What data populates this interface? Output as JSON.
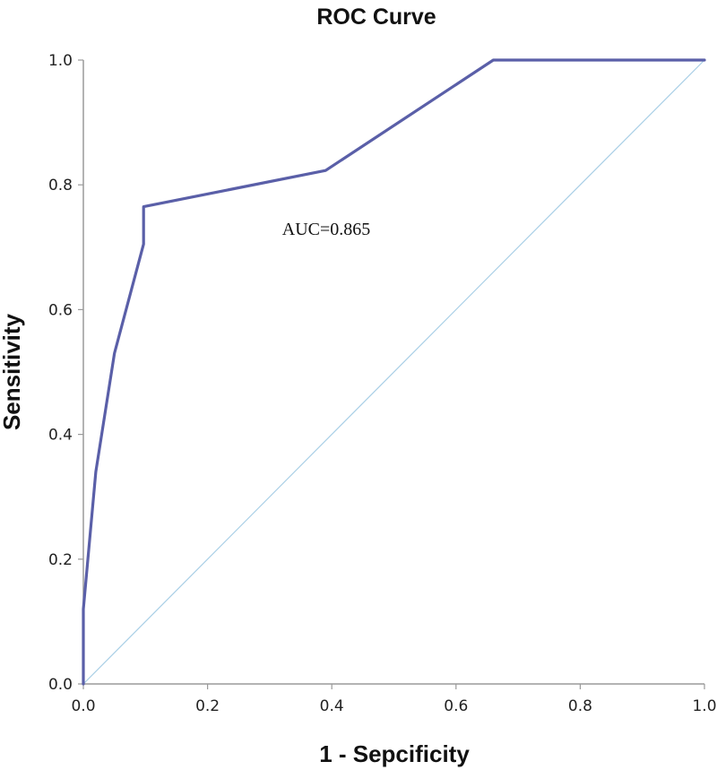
{
  "chart_data": {
    "type": "line",
    "title": "ROC Curve",
    "xlabel": "1 - Sepcificity",
    "ylabel": "Sensitivity",
    "xlim": [
      0,
      1
    ],
    "ylim": [
      0,
      1
    ],
    "x_ticks": [
      "0.0",
      "0.2",
      "0.4",
      "0.6",
      "0.8",
      "1.0"
    ],
    "y_ticks": [
      "0.0",
      "0.2",
      "0.4",
      "0.6",
      "0.8",
      "1.0"
    ],
    "grid": false,
    "series": [
      {
        "color": "#5a5fa8",
        "points": [
          {
            "x": 0.0,
            "y": 0.0
          },
          {
            "x": 0.0,
            "y": 0.12
          },
          {
            "x": 0.02,
            "y": 0.34
          },
          {
            "x": 0.05,
            "y": 0.53
          },
          {
            "x": 0.097,
            "y": 0.705
          },
          {
            "x": 0.097,
            "y": 0.765
          },
          {
            "x": 0.39,
            "y": 0.823
          },
          {
            "x": 0.66,
            "y": 1.0
          },
          {
            "x": 1.0,
            "y": 1.0
          }
        ]
      },
      {
        "color": "#a9cfe6",
        "points": [
          {
            "x": 0.0,
            "y": 0.0
          },
          {
            "x": 1.0,
            "y": 1.0
          }
        ]
      }
    ],
    "annotations": [
      {
        "text": "AUC=0.865",
        "x": 0.32,
        "y": 0.72
      }
    ]
  }
}
